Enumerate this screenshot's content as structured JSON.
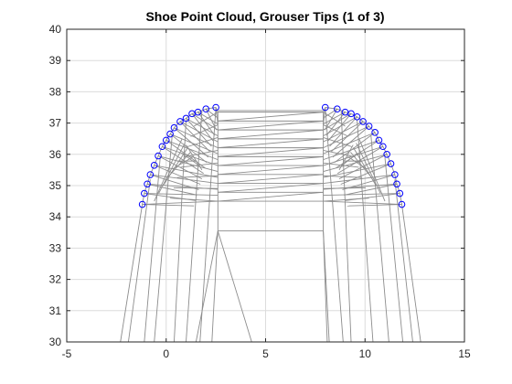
{
  "chart_data": {
    "type": "scatter",
    "title": "Shoe Point Cloud, Grouser Tips (1 of 3)",
    "xlabel": "",
    "ylabel": "",
    "xlim": [
      -5,
      15
    ],
    "ylim": [
      30,
      40
    ],
    "x_ticks": [
      -5,
      0,
      5,
      10,
      15
    ],
    "y_ticks": [
      30,
      31,
      32,
      33,
      34,
      35,
      36,
      37,
      38,
      39,
      40
    ],
    "grid": true,
    "colors": {
      "mesh": "#8c8c8c",
      "markers": "#0000ff",
      "grid": "#dcdcdc",
      "axes": "#262626"
    },
    "series": [
      {
        "type": "scatter",
        "marker": "circle",
        "points": [
          [
            -1.2,
            34.4
          ],
          [
            -1.1,
            34.75
          ],
          [
            -0.95,
            35.05
          ],
          [
            -0.8,
            35.35
          ],
          [
            -0.6,
            35.65
          ],
          [
            -0.4,
            35.95
          ],
          [
            -0.2,
            36.25
          ],
          [
            0.0,
            36.45
          ],
          [
            0.2,
            36.65
          ],
          [
            0.4,
            36.85
          ],
          [
            0.7,
            37.05
          ],
          [
            1.0,
            37.15
          ],
          [
            1.3,
            37.3
          ],
          [
            1.6,
            37.35
          ],
          [
            2.0,
            37.45
          ],
          [
            2.5,
            37.5
          ],
          [
            8.0,
            37.5
          ],
          [
            8.6,
            37.45
          ],
          [
            9.0,
            37.35
          ],
          [
            9.3,
            37.3
          ],
          [
            9.6,
            37.2
          ],
          [
            9.9,
            37.05
          ],
          [
            10.2,
            36.9
          ],
          [
            10.5,
            36.7
          ],
          [
            10.7,
            36.45
          ],
          [
            10.9,
            36.25
          ],
          [
            11.1,
            36.0
          ],
          [
            11.3,
            35.7
          ],
          [
            11.5,
            35.35
          ],
          [
            11.6,
            35.05
          ],
          [
            11.75,
            34.75
          ],
          [
            11.85,
            34.4
          ]
        ]
      }
    ]
  }
}
